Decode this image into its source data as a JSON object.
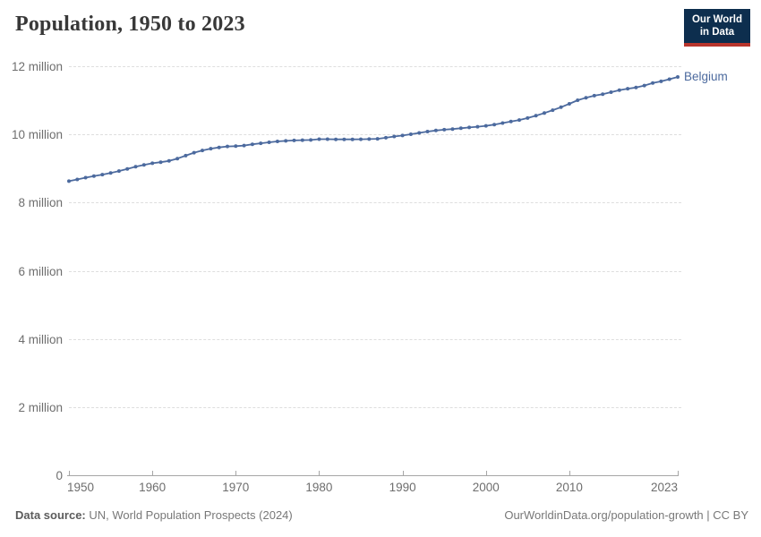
{
  "header": {
    "title": "Population, 1950 to 2023",
    "logo": {
      "line1": "Our World",
      "line2": "in Data"
    }
  },
  "chart_data": {
    "type": "line",
    "title": "Population, 1950 to 2023",
    "xlabel": "",
    "ylabel": "",
    "unit": "million",
    "xlim": [
      1950,
      2023
    ],
    "ylim": [
      0,
      12
    ],
    "grid": "horizontal-dashed",
    "legend_position": "end-of-line-label",
    "x_ticks": [
      {
        "value": 1950,
        "label": "1950"
      },
      {
        "value": 1960,
        "label": "1960"
      },
      {
        "value": 1970,
        "label": "1970"
      },
      {
        "value": 1980,
        "label": "1980"
      },
      {
        "value": 1990,
        "label": "1990"
      },
      {
        "value": 2000,
        "label": "2000"
      },
      {
        "value": 2010,
        "label": "2010"
      },
      {
        "value": 2023,
        "label": "2023"
      }
    ],
    "y_ticks": [
      {
        "value": 0,
        "label": "0"
      },
      {
        "value": 2,
        "label": "2 million"
      },
      {
        "value": 4,
        "label": "4 million"
      },
      {
        "value": 6,
        "label": "6 million"
      },
      {
        "value": 8,
        "label": "8 million"
      },
      {
        "value": 10,
        "label": "10 million"
      },
      {
        "value": 12,
        "label": "12 million"
      }
    ],
    "series": [
      {
        "name": "Belgium",
        "color": "#4c6a9e",
        "unit_scale": "millions",
        "x": [
          1950,
          1951,
          1952,
          1953,
          1954,
          1955,
          1956,
          1957,
          1958,
          1959,
          1960,
          1961,
          1962,
          1963,
          1964,
          1965,
          1966,
          1967,
          1968,
          1969,
          1970,
          1971,
          1972,
          1973,
          1974,
          1975,
          1976,
          1977,
          1978,
          1979,
          1980,
          1981,
          1982,
          1983,
          1984,
          1985,
          1986,
          1987,
          1988,
          1989,
          1990,
          1991,
          1992,
          1993,
          1994,
          1995,
          1996,
          1997,
          1998,
          1999,
          2000,
          2001,
          2002,
          2003,
          2004,
          2005,
          2006,
          2007,
          2008,
          2009,
          2010,
          2011,
          2012,
          2013,
          2014,
          2015,
          2016,
          2017,
          2018,
          2019,
          2020,
          2021,
          2022,
          2023
        ],
        "values": [
          8.628,
          8.678,
          8.731,
          8.778,
          8.82,
          8.868,
          8.924,
          8.989,
          9.053,
          9.104,
          9.153,
          9.184,
          9.221,
          9.29,
          9.378,
          9.464,
          9.528,
          9.581,
          9.619,
          9.646,
          9.656,
          9.673,
          9.709,
          9.738,
          9.768,
          9.795,
          9.811,
          9.822,
          9.83,
          9.837,
          9.859,
          9.859,
          9.856,
          9.855,
          9.855,
          9.858,
          9.862,
          9.87,
          9.901,
          9.938,
          9.967,
          10.004,
          10.045,
          10.084,
          10.115,
          10.137,
          10.157,
          10.181,
          10.203,
          10.226,
          10.251,
          10.287,
          10.333,
          10.377,
          10.422,
          10.479,
          10.548,
          10.626,
          10.71,
          10.797,
          10.896,
          11.001,
          11.076,
          11.137,
          11.181,
          11.238,
          11.295,
          11.34,
          11.376,
          11.433,
          11.507,
          11.555,
          11.618,
          11.686
        ]
      }
    ]
  },
  "footer": {
    "datasource_label": "Data source:",
    "datasource_value": " UN, World Population Prospects (2024)",
    "link": "OurWorldinData.org/population-growth | CC BY"
  },
  "colors": {
    "series": "#4c6a9e",
    "grid": "#dedede",
    "axis": "#a6a6a6",
    "tick_text": "#6e6e6e",
    "title_text": "#383838",
    "footer_text": "#787878",
    "logo_bg": "#0d2e4e",
    "logo_stripe": "#b8352c"
  }
}
